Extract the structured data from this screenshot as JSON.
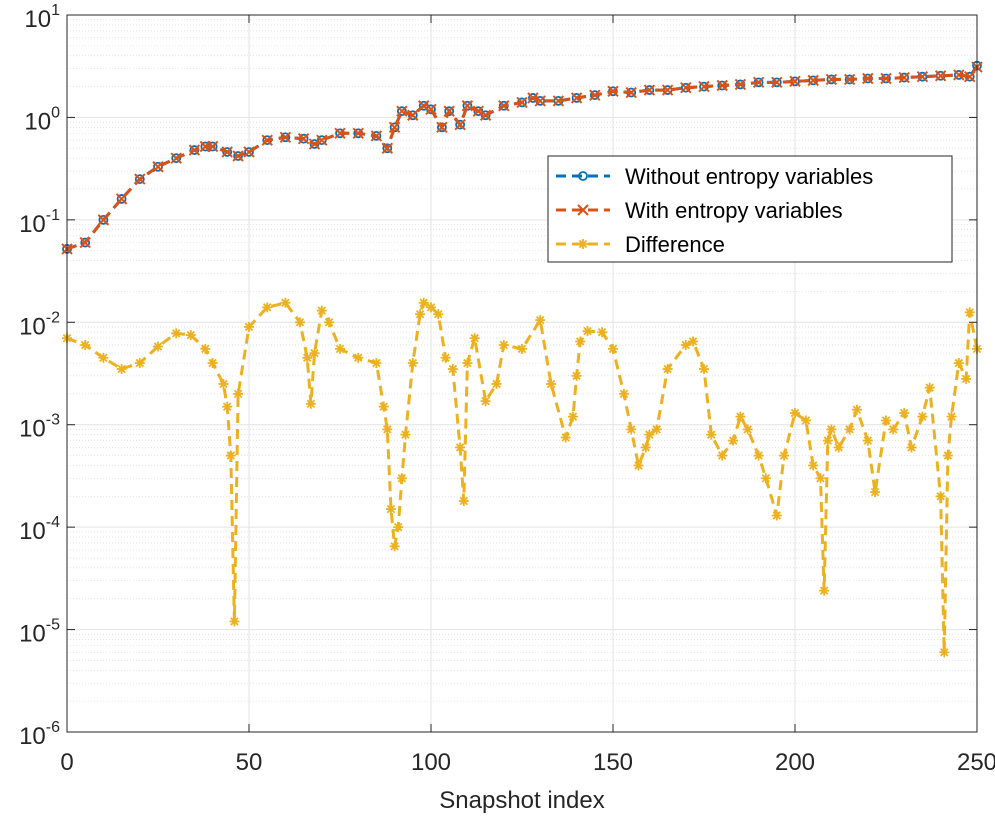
{
  "chart_data": {
    "type": "line",
    "xlabel": "Snapshot index",
    "ylabel": "",
    "xlim": [
      0,
      250
    ],
    "ylim": [
      1e-06,
      10
    ],
    "yscale": "log",
    "grid": true,
    "minor_grid": true,
    "legend_position": "top-right",
    "x_ticks": [
      0,
      50,
      100,
      150,
      200,
      250
    ],
    "y_ticks": [
      {
        "base": "10",
        "exp": "-6",
        "value": 1e-06
      },
      {
        "base": "10",
        "exp": "-5",
        "value": 1e-05
      },
      {
        "base": "10",
        "exp": "-4",
        "value": 0.0001
      },
      {
        "base": "10",
        "exp": "-3",
        "value": 0.001
      },
      {
        "base": "10",
        "exp": "-2",
        "value": 0.01
      },
      {
        "base": "10",
        "exp": "-1",
        "value": 0.1
      },
      {
        "base": "10",
        "exp": "0",
        "value": 1
      },
      {
        "base": "10",
        "exp": "1",
        "value": 10
      }
    ],
    "series": [
      {
        "name": "Without entropy variables",
        "color": "#0072BD",
        "marker": "circle",
        "line_style": "dashed",
        "x": [
          0,
          5,
          10,
          15,
          20,
          25,
          30,
          35,
          38,
          40,
          44,
          47,
          50,
          55,
          60,
          65,
          68,
          70,
          75,
          80,
          85,
          88,
          90,
          92,
          95,
          98,
          100,
          103,
          105,
          108,
          110,
          113,
          115,
          120,
          125,
          128,
          130,
          135,
          140,
          145,
          150,
          155,
          160,
          165,
          170,
          175,
          180,
          185,
          190,
          195,
          200,
          205,
          210,
          215,
          220,
          225,
          230,
          235,
          240,
          245,
          248,
          250
        ],
        "values": [
          0.052,
          0.06,
          0.1,
          0.16,
          0.25,
          0.33,
          0.4,
          0.48,
          0.52,
          0.52,
          0.46,
          0.42,
          0.46,
          0.6,
          0.64,
          0.62,
          0.55,
          0.6,
          0.7,
          0.7,
          0.66,
          0.5,
          0.8,
          1.15,
          1.05,
          1.3,
          1.2,
          0.8,
          1.15,
          0.85,
          1.3,
          1.15,
          1.05,
          1.3,
          1.4,
          1.55,
          1.45,
          1.45,
          1.55,
          1.65,
          1.8,
          1.75,
          1.85,
          1.85,
          1.95,
          2.0,
          2.05,
          2.1,
          2.2,
          2.2,
          2.25,
          2.3,
          2.35,
          2.35,
          2.4,
          2.4,
          2.45,
          2.5,
          2.55,
          2.6,
          2.5,
          3.2
        ]
      },
      {
        "name": "With entropy variables",
        "color": "#D95319",
        "marker": "x",
        "line_style": "dashed",
        "x": [
          0,
          5,
          10,
          15,
          20,
          25,
          30,
          35,
          38,
          40,
          44,
          47,
          50,
          55,
          60,
          65,
          68,
          70,
          75,
          80,
          85,
          88,
          90,
          92,
          95,
          98,
          100,
          103,
          105,
          108,
          110,
          113,
          115,
          120,
          125,
          128,
          130,
          135,
          140,
          145,
          150,
          155,
          160,
          165,
          170,
          175,
          180,
          185,
          190,
          195,
          200,
          205,
          210,
          215,
          220,
          225,
          230,
          235,
          240,
          245,
          248,
          250
        ],
        "values": [
          0.052,
          0.06,
          0.1,
          0.16,
          0.25,
          0.33,
          0.4,
          0.48,
          0.52,
          0.52,
          0.46,
          0.42,
          0.46,
          0.6,
          0.64,
          0.62,
          0.55,
          0.6,
          0.7,
          0.7,
          0.66,
          0.5,
          0.8,
          1.15,
          1.05,
          1.3,
          1.2,
          0.8,
          1.15,
          0.85,
          1.3,
          1.15,
          1.05,
          1.3,
          1.4,
          1.55,
          1.45,
          1.45,
          1.55,
          1.65,
          1.8,
          1.75,
          1.85,
          1.85,
          1.95,
          2.0,
          2.05,
          2.1,
          2.2,
          2.2,
          2.25,
          2.3,
          2.35,
          2.35,
          2.4,
          2.4,
          2.45,
          2.5,
          2.55,
          2.6,
          2.5,
          3.1
        ]
      },
      {
        "name": "Difference",
        "color": "#EDB120",
        "marker": "asterisk",
        "line_style": "dashed",
        "x": [
          0,
          5,
          10,
          15,
          20,
          25,
          30,
          34,
          38,
          40,
          43,
          44,
          45,
          46,
          47,
          50,
          55,
          60,
          64,
          66,
          67,
          68,
          70,
          72,
          75,
          80,
          85,
          87,
          88,
          89,
          90,
          91,
          92,
          93,
          95,
          97,
          98,
          100,
          102,
          104,
          106,
          108,
          109,
          110,
          112,
          115,
          118,
          120,
          125,
          130,
          133,
          137,
          139,
          140,
          141,
          143,
          147,
          150,
          153,
          155,
          157,
          159,
          160,
          162,
          165,
          170,
          172,
          175,
          177,
          180,
          183,
          185,
          187,
          190,
          192,
          195,
          197,
          200,
          203,
          205,
          207,
          208,
          209,
          210,
          212,
          215,
          217,
          220,
          222,
          225,
          227,
          230,
          232,
          235,
          237,
          240,
          241,
          242,
          243,
          245,
          247,
          248,
          250
        ],
        "values": [
          0.007,
          0.006,
          0.0045,
          0.0035,
          0.004,
          0.0058,
          0.0078,
          0.0075,
          0.0055,
          0.004,
          0.0025,
          0.0015,
          0.0005,
          1.2e-05,
          0.002,
          0.009,
          0.014,
          0.0155,
          0.01,
          0.0045,
          0.0016,
          0.005,
          0.013,
          0.01,
          0.0055,
          0.0045,
          0.004,
          0.0015,
          0.0009,
          0.00015,
          6.5e-05,
          0.0001,
          0.0003,
          0.0008,
          0.004,
          0.012,
          0.0155,
          0.014,
          0.012,
          0.0045,
          0.0035,
          0.0006,
          0.00018,
          0.004,
          0.007,
          0.0017,
          0.0025,
          0.006,
          0.0055,
          0.0105,
          0.0025,
          0.00075,
          0.0012,
          0.003,
          0.0065,
          0.0082,
          0.008,
          0.0055,
          0.002,
          0.0009,
          0.0004,
          0.0006,
          0.0008,
          0.0009,
          0.0035,
          0.006,
          0.0065,
          0.0035,
          0.0008,
          0.0005,
          0.0007,
          0.0012,
          0.0009,
          0.0005,
          0.0003,
          0.00013,
          0.0005,
          0.0013,
          0.0011,
          0.0004,
          0.0003,
          2.4e-05,
          0.0007,
          0.0009,
          0.0006,
          0.0009,
          0.0014,
          0.0007,
          0.00022,
          0.0011,
          0.0009,
          0.0013,
          0.0006,
          0.0012,
          0.0023,
          0.0002,
          6e-06,
          0.0005,
          0.0012,
          0.004,
          0.0028,
          0.0125,
          0.0055
        ]
      }
    ]
  }
}
